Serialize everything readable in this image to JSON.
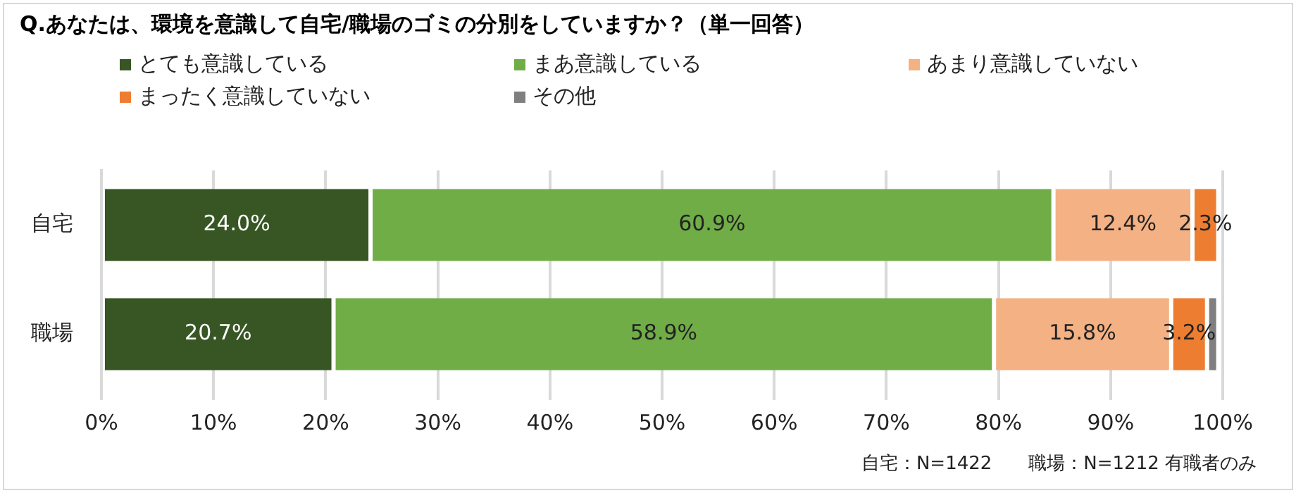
{
  "chart_data": {
    "type": "bar",
    "orientation": "horizontal",
    "stacked": true,
    "title": "Q.あなたは、環境を意識して自宅/職場のゴミの分別をしていますか？（単一回答）",
    "categories": [
      "自宅",
      "職場"
    ],
    "series": [
      {
        "name": "とても意識している",
        "color": "#375623",
        "values": [
          24.0,
          20.7
        ],
        "value_labels": [
          "24.0%",
          "20.7%"
        ]
      },
      {
        "name": "まあ意識している",
        "color": "#70ad47",
        "values": [
          60.9,
          58.9
        ],
        "value_labels": [
          "60.9%",
          "58.9%"
        ]
      },
      {
        "name": "あまり意識していない",
        "color": "#f4b183",
        "values": [
          12.4,
          15.8
        ],
        "value_labels": [
          "12.4%",
          "15.8%"
        ]
      },
      {
        "name": "まったく意識していない",
        "color": "#ed7d31",
        "values": [
          2.3,
          3.2
        ],
        "value_labels": [
          "2.3%",
          "3.2%"
        ]
      },
      {
        "name": "その他",
        "color": "#7f7f7f",
        "values": [
          null,
          1.0
        ],
        "value_labels": [
          null,
          null
        ]
      }
    ],
    "xlim": [
      0,
      100
    ],
    "xticks": [
      {
        "value": 0,
        "label": "0%"
      },
      {
        "value": 10,
        "label": "10%"
      },
      {
        "value": 20,
        "label": "20%"
      },
      {
        "value": 30,
        "label": "30%"
      },
      {
        "value": 40,
        "label": "40%"
      },
      {
        "value": 50,
        "label": "50%"
      },
      {
        "value": 60,
        "label": "60%"
      },
      {
        "value": 70,
        "label": "70%"
      },
      {
        "value": 80,
        "label": "80%"
      },
      {
        "value": 90,
        "label": "90%"
      },
      {
        "value": 100,
        "label": "100%"
      }
    ],
    "grid": "x",
    "legend": "top",
    "annotations": [
      "自宅：N=1422　　職場：N=1212 有職者のみ"
    ]
  }
}
